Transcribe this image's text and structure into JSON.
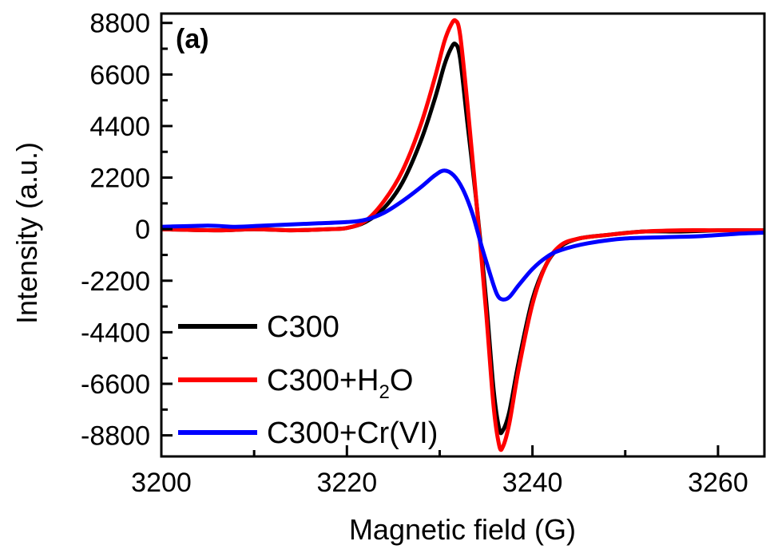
{
  "chart_data": {
    "type": "line",
    "panel_label": "(a)",
    "xlabel": "Magnetic field (G)",
    "ylabel": "Intensity (a.u.)",
    "xlim": [
      3200,
      3265
    ],
    "ylim": [
      -9700,
      9200
    ],
    "xticks": [
      3200,
      3220,
      3240,
      3260
    ],
    "yticks": [
      8800,
      6600,
      4400,
      2200,
      0,
      -2200,
      -4400,
      -6600,
      -8800
    ],
    "grid": false,
    "legend_position": "bottom-left",
    "series": [
      {
        "name": "C300",
        "name_main": "C300",
        "color": "#000000",
        "points": [
          [
            3200,
            0
          ],
          [
            3206,
            -50
          ],
          [
            3210,
            0
          ],
          [
            3214,
            -50
          ],
          [
            3218,
            0
          ],
          [
            3220,
            50
          ],
          [
            3222,
            300
          ],
          [
            3224,
            900
          ],
          [
            3226,
            2000
          ],
          [
            3228,
            3800
          ],
          [
            3229.5,
            5600
          ],
          [
            3230.5,
            7000
          ],
          [
            3231.2,
            7700
          ],
          [
            3231.7,
            7900
          ],
          [
            3232.2,
            7300
          ],
          [
            3233,
            4500
          ],
          [
            3234,
            1000
          ],
          [
            3235,
            -3000
          ],
          [
            3235.8,
            -6800
          ],
          [
            3236.4,
            -8500
          ],
          [
            3236.8,
            -8600
          ],
          [
            3237.5,
            -7800
          ],
          [
            3238.5,
            -5700
          ],
          [
            3240,
            -3000
          ],
          [
            3241.5,
            -1500
          ],
          [
            3243,
            -750
          ],
          [
            3245,
            -400
          ],
          [
            3248,
            -250
          ],
          [
            3252,
            -100
          ],
          [
            3256,
            -100
          ],
          [
            3260,
            -50
          ],
          [
            3265,
            -50
          ]
        ]
      },
      {
        "name": "C300+H2O",
        "name_main": "C300+H",
        "name_sub": "2",
        "name_tail": "O",
        "color": "#ff0000",
        "points": [
          [
            3200,
            0
          ],
          [
            3206,
            -50
          ],
          [
            3210,
            0
          ],
          [
            3214,
            -50
          ],
          [
            3218,
            0
          ],
          [
            3220,
            50
          ],
          [
            3222,
            350
          ],
          [
            3224,
            1200
          ],
          [
            3226,
            2500
          ],
          [
            3228,
            4500
          ],
          [
            3229.5,
            6500
          ],
          [
            3230.5,
            8000
          ],
          [
            3231.2,
            8700
          ],
          [
            3231.7,
            8900
          ],
          [
            3232.2,
            8300
          ],
          [
            3233,
            5300
          ],
          [
            3234,
            1000
          ],
          [
            3235,
            -3500
          ],
          [
            3235.8,
            -7500
          ],
          [
            3236.4,
            -9200
          ],
          [
            3236.8,
            -9300
          ],
          [
            3237.5,
            -8300
          ],
          [
            3238.5,
            -6000
          ],
          [
            3240,
            -3200
          ],
          [
            3241.5,
            -1500
          ],
          [
            3243,
            -700
          ],
          [
            3245,
            -400
          ],
          [
            3248,
            -250
          ],
          [
            3252,
            -100
          ],
          [
            3256,
            -50
          ],
          [
            3260,
            -50
          ],
          [
            3265,
            -50
          ]
        ]
      },
      {
        "name": "C300+Cr(VI)",
        "name_main": "C300+Cr(VI)",
        "color": "#0000ff",
        "points": [
          [
            3200,
            100
          ],
          [
            3205,
            150
          ],
          [
            3208,
            100
          ],
          [
            3211,
            150
          ],
          [
            3214,
            200
          ],
          [
            3217,
            250
          ],
          [
            3220,
            300
          ],
          [
            3222,
            400
          ],
          [
            3224,
            700
          ],
          [
            3226,
            1200
          ],
          [
            3228,
            1800
          ],
          [
            3229.5,
            2300
          ],
          [
            3230.5,
            2500
          ],
          [
            3231.5,
            2300
          ],
          [
            3232.5,
            1700
          ],
          [
            3233.5,
            700
          ],
          [
            3234.5,
            -700
          ],
          [
            3235.5,
            -2000
          ],
          [
            3236.2,
            -2800
          ],
          [
            3236.8,
            -3000
          ],
          [
            3237.5,
            -2900
          ],
          [
            3238.5,
            -2400
          ],
          [
            3240,
            -1700
          ],
          [
            3241.5,
            -1200
          ],
          [
            3243,
            -900
          ],
          [
            3246,
            -600
          ],
          [
            3250,
            -400
          ],
          [
            3254,
            -350
          ],
          [
            3258,
            -300
          ],
          [
            3262,
            -200
          ],
          [
            3265,
            -150
          ]
        ]
      }
    ]
  }
}
